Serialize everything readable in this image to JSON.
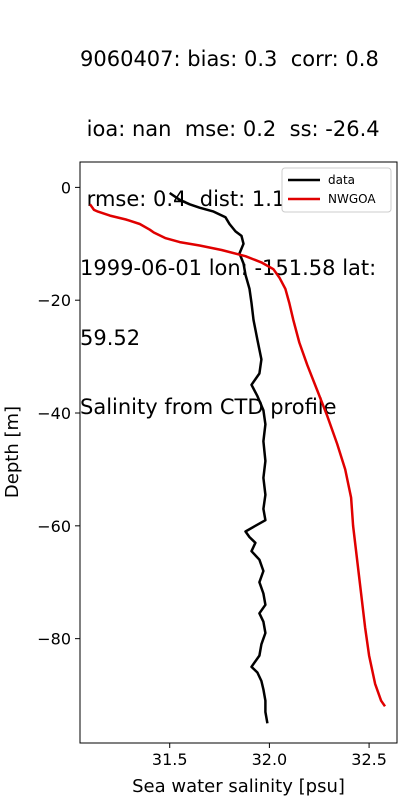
{
  "chart_data": {
    "type": "line",
    "title_lines": [
      "9060407: bias: 0.3  corr: 0.8",
      " ioa: nan  mse: 0.2  ss: -26.4",
      " rmse: 0.4  dist: 1.1",
      "1999-06-01 lon: -151.58 lat:",
      "59.52",
      "Salinity from CTD profile"
    ],
    "xlabel": "Sea water salinity [psu]",
    "ylabel": "Depth [m]",
    "xlim": [
      31.05,
      32.64
    ],
    "ylim": [
      -98.5,
      4.5
    ],
    "xticks": [
      31.5,
      32.0,
      32.5
    ],
    "xtick_labels": [
      "31.5",
      "32.0",
      "32.5"
    ],
    "yticks": [
      0,
      -20,
      -40,
      -60,
      -80
    ],
    "ytick_labels": [
      "0",
      "−20",
      "−40",
      "−60",
      "−80"
    ],
    "legend_position": "top-right",
    "series": [
      {
        "name": "data",
        "color": "#000000",
        "points": [
          [
            31.5,
            -1
          ],
          [
            31.55,
            -2.2
          ],
          [
            31.6,
            -3
          ],
          [
            31.65,
            -3.6
          ],
          [
            31.72,
            -4.3
          ],
          [
            31.78,
            -5.3
          ],
          [
            31.8,
            -6.5
          ],
          [
            31.83,
            -7.8
          ],
          [
            31.86,
            -8.6
          ],
          [
            31.87,
            -10
          ],
          [
            31.85,
            -11.7
          ],
          [
            31.87,
            -13.5
          ],
          [
            31.88,
            -15.5
          ],
          [
            31.9,
            -18
          ],
          [
            31.91,
            -20.5
          ],
          [
            31.92,
            -23.5
          ],
          [
            31.94,
            -27
          ],
          [
            31.96,
            -30.5
          ],
          [
            31.95,
            -33
          ],
          [
            31.91,
            -35
          ],
          [
            31.94,
            -37
          ],
          [
            31.97,
            -39.5
          ],
          [
            31.98,
            -42
          ],
          [
            31.97,
            -45
          ],
          [
            31.98,
            -48.5
          ],
          [
            31.97,
            -51.5
          ],
          [
            31.98,
            -54.5
          ],
          [
            31.97,
            -57
          ],
          [
            31.98,
            -59
          ],
          [
            31.93,
            -60
          ],
          [
            31.88,
            -61
          ],
          [
            31.9,
            -62
          ],
          [
            31.93,
            -63
          ],
          [
            31.91,
            -64.5
          ],
          [
            31.95,
            -66
          ],
          [
            31.97,
            -68
          ],
          [
            31.95,
            -70
          ],
          [
            31.97,
            -72
          ],
          [
            31.98,
            -74
          ],
          [
            31.95,
            -75.5
          ],
          [
            31.97,
            -77
          ],
          [
            31.98,
            -79
          ],
          [
            31.96,
            -81
          ],
          [
            31.95,
            -83
          ],
          [
            31.91,
            -85
          ],
          [
            31.94,
            -86
          ],
          [
            31.96,
            -87.5
          ],
          [
            31.97,
            -89
          ],
          [
            31.98,
            -91
          ],
          [
            31.98,
            -93
          ],
          [
            31.99,
            -95
          ]
        ]
      },
      {
        "name": "NWGOA",
        "color": "#e00000",
        "points": [
          [
            31.1,
            -3
          ],
          [
            31.12,
            -4
          ],
          [
            31.14,
            -4.3
          ],
          [
            31.2,
            -5
          ],
          [
            31.28,
            -5.7
          ],
          [
            31.35,
            -6.5
          ],
          [
            31.4,
            -7.5
          ],
          [
            31.42,
            -8
          ],
          [
            31.48,
            -9
          ],
          [
            31.55,
            -9.7
          ],
          [
            31.65,
            -10.3
          ],
          [
            31.76,
            -11.1
          ],
          [
            31.88,
            -12.2
          ],
          [
            31.96,
            -13.3
          ],
          [
            32.02,
            -14.5
          ],
          [
            32.05,
            -16
          ],
          [
            32.08,
            -18
          ],
          [
            32.1,
            -20.5
          ],
          [
            32.12,
            -23.5
          ],
          [
            32.15,
            -27.5
          ],
          [
            32.19,
            -31.5
          ],
          [
            32.24,
            -36
          ],
          [
            32.29,
            -40.5
          ],
          [
            32.34,
            -45.5
          ],
          [
            32.38,
            -50
          ],
          [
            32.41,
            -55
          ],
          [
            32.42,
            -60
          ],
          [
            32.44,
            -66
          ],
          [
            32.46,
            -72
          ],
          [
            32.48,
            -78
          ],
          [
            32.5,
            -83
          ],
          [
            32.53,
            -88
          ],
          [
            32.56,
            -91
          ],
          [
            32.58,
            -92
          ]
        ]
      }
    ]
  }
}
